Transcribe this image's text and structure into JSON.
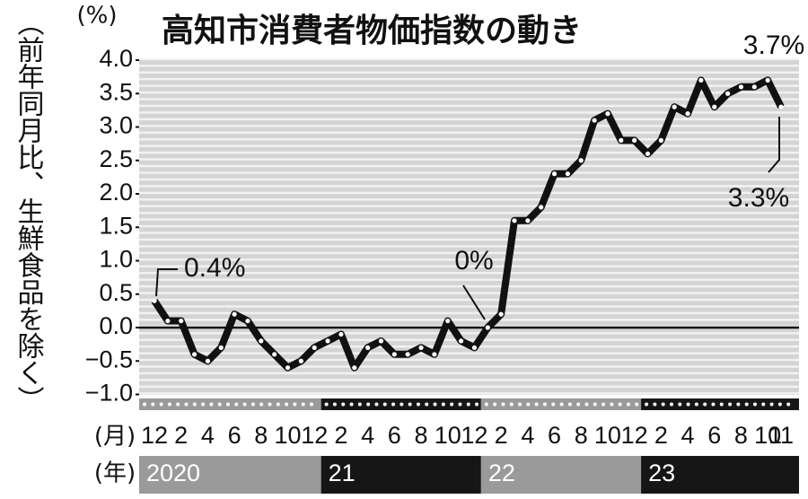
{
  "chart_data": {
    "type": "line",
    "title": "高知市消費者物価指数の動き",
    "y_unit": "(%)",
    "y_label": "（前年同月比、生鮮食品を除く）",
    "x_month_label": "(月)",
    "x_year_label": "(年)",
    "categories": [
      "12",
      null,
      "2",
      null,
      "4",
      null,
      "6",
      null,
      "8",
      null,
      "10",
      null,
      "12",
      null,
      "2",
      null,
      "4",
      null,
      "6",
      null,
      "8",
      null,
      "10",
      null,
      "12",
      null,
      "2",
      null,
      "4",
      null,
      "6",
      null,
      "8",
      null,
      "10",
      null,
      "12",
      null,
      "2",
      null,
      "4",
      null,
      "6",
      null,
      "8",
      null,
      "10",
      "11"
    ],
    "years": [
      "2020",
      "21",
      "22",
      "23"
    ],
    "series": [
      {
        "name": "高知市消費者物価指数",
        "color": "#111111",
        "values": [
          0.4,
          0.1,
          0.1,
          -0.4,
          -0.5,
          -0.3,
          0.2,
          0.1,
          -0.2,
          -0.4,
          -0.6,
          -0.5,
          -0.3,
          -0.2,
          -0.1,
          -0.6,
          -0.3,
          -0.2,
          -0.4,
          -0.4,
          -0.3,
          -0.4,
          0.1,
          -0.2,
          -0.3,
          0.0,
          0.2,
          1.6,
          1.6,
          1.8,
          2.3,
          2.3,
          2.5,
          3.1,
          3.2,
          2.8,
          2.8,
          2.6,
          2.8,
          3.3,
          3.2,
          3.7,
          3.3,
          3.5,
          3.6,
          3.6,
          3.7,
          3.3
        ],
        "value_labels": [
          "0.4%",
          null,
          null,
          null,
          null,
          null,
          null,
          null,
          null,
          null,
          null,
          null,
          null,
          null,
          null,
          null,
          null,
          null,
          null,
          null,
          null,
          null,
          null,
          null,
          null,
          "0%",
          null,
          null,
          null,
          null,
          null,
          null,
          null,
          null,
          null,
          null,
          null,
          null,
          null,
          null,
          null,
          null,
          null,
          null,
          null,
          null,
          "3.7%",
          "3.3%"
        ]
      }
    ],
    "ylim": [
      -1.0,
      4.0
    ],
    "yticks": [
      {
        "value": 4,
        "label": "4.0"
      },
      3.5,
      {
        "value": 3,
        "label": "3.0"
      },
      2.5,
      {
        "value": 2,
        "label": "2.0"
      },
      1.5,
      {
        "value": 1,
        "label": "1.0"
      },
      0.5,
      {
        "value": 0,
        "label": "0.0"
      },
      {
        "value": -0.5,
        "label": "−0.5"
      },
      {
        "value": -1,
        "label": "−1.0"
      }
    ]
  }
}
